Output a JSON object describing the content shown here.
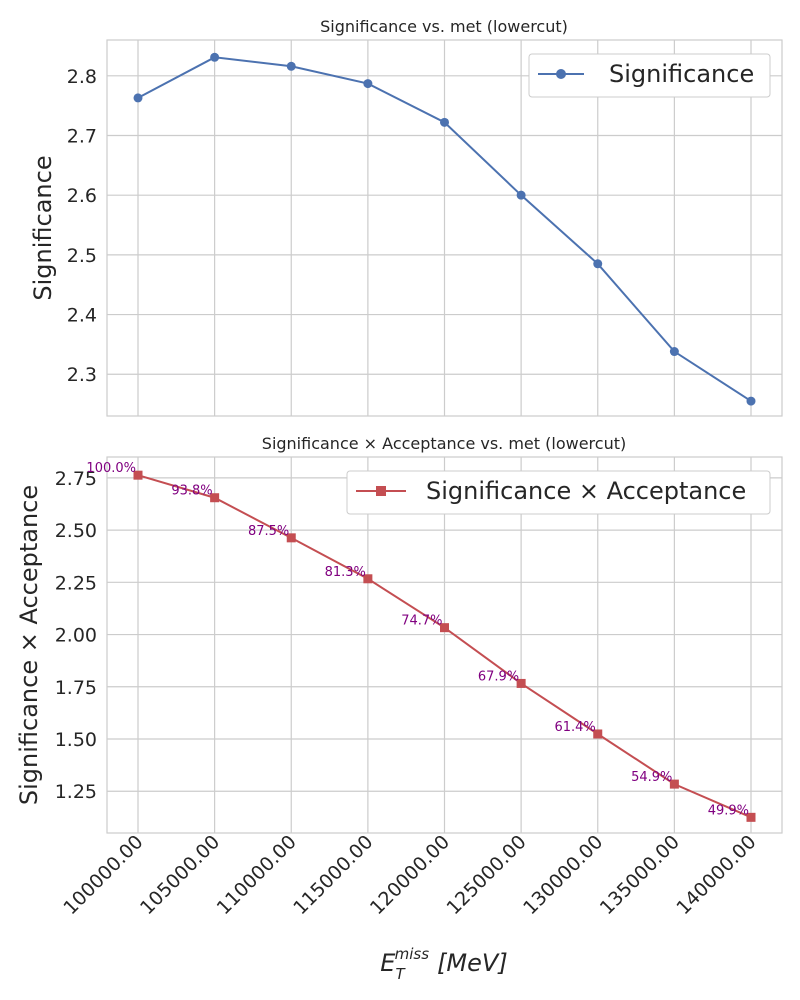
{
  "chart_data": [
    {
      "type": "line",
      "title": "Significance vs. met (lowercut)",
      "ylabel": "Significance",
      "ylim": [
        2.23,
        2.86
      ],
      "yticks": [
        "2.3",
        "2.4",
        "2.5",
        "2.6",
        "2.7",
        "2.8"
      ],
      "grid": true,
      "legend_placement": "top-right",
      "x": [
        100000,
        105000,
        110000,
        115000,
        120000,
        125000,
        130000,
        135000,
        140000
      ],
      "series": [
        {
          "name": "Significance",
          "color": "#4c72b0",
          "marker": "circle",
          "values": [
            2.763,
            2.831,
            2.816,
            2.787,
            2.722,
            2.6,
            2.485,
            2.338,
            2.255
          ]
        }
      ]
    },
    {
      "type": "line",
      "title": "Significance × Acceptance vs. met (lowercut)",
      "ylabel": "Significance × Acceptance",
      "ylim": [
        1.05,
        2.85
      ],
      "yticks": [
        "1.25",
        "1.50",
        "1.75",
        "2.00",
        "2.25",
        "2.50",
        "2.75"
      ],
      "grid": true,
      "legend_placement": "top-right",
      "x": [
        100000,
        105000,
        110000,
        115000,
        120000,
        125000,
        130000,
        135000,
        140000
      ],
      "xticks": [
        "100000.00",
        "105000.00",
        "110000.00",
        "115000.00",
        "120000.00",
        "125000.00",
        "130000.00",
        "135000.00",
        "140000.00"
      ],
      "series": [
        {
          "name": "Significance × Acceptance",
          "color": "#c44e52",
          "marker": "square",
          "values": [
            2.763,
            2.655,
            2.463,
            2.267,
            2.033,
            1.766,
            1.524,
            1.284,
            1.125
          ]
        }
      ],
      "annotations": [
        "100.0%",
        "93.8%",
        "87.5%",
        "81.3%",
        "74.7%",
        "67.9%",
        "61.4%",
        "54.9%",
        "49.9%"
      ],
      "annotation_color": "#800080"
    }
  ],
  "xlabel_base": "E",
  "xlabel_sub": "T",
  "xlabel_sup": "miss",
  "xlabel_unit": "[MeV]"
}
